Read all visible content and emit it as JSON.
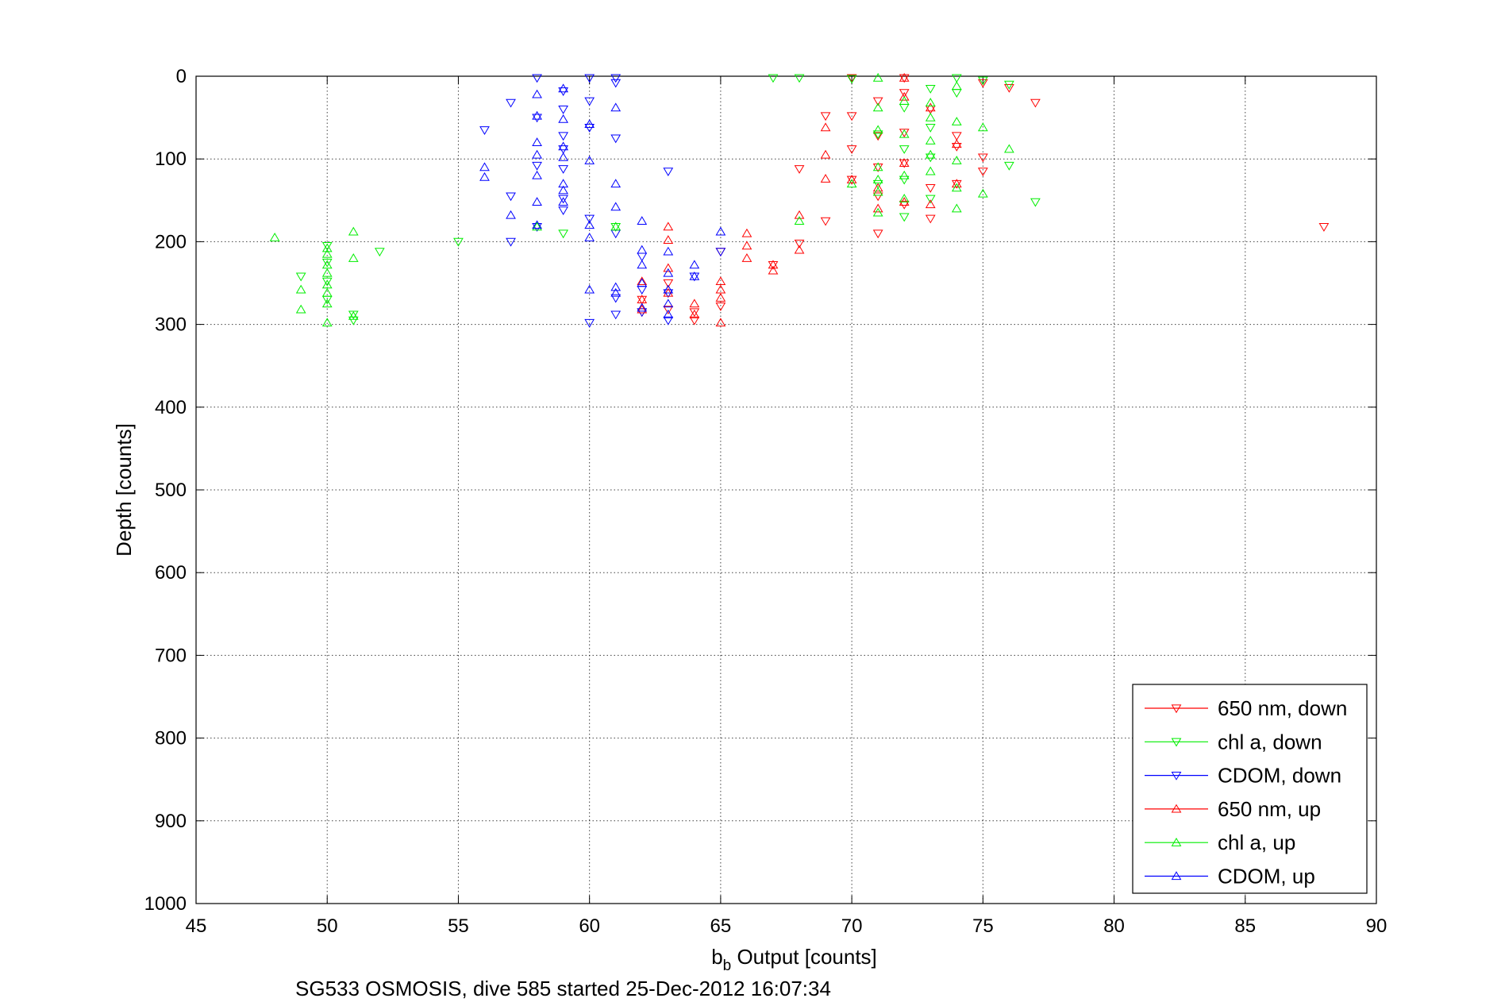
{
  "chart_data": {
    "type": "scatter",
    "title": "",
    "xlabel_main": "b",
    "xlabel_sub": "b",
    "xlabel_rest": " Output [counts]",
    "ylabel": "Depth [counts]",
    "caption": "SG533 OSMOSIS, dive 585 started 25-Dec-2012 16:07:34",
    "xlim": [
      45,
      90
    ],
    "ylim": [
      0,
      1000
    ],
    "y_reversed": true,
    "grid": true,
    "legend_position": "bottom-right",
    "x_ticks": [
      "45",
      "50",
      "55",
      "60",
      "65",
      "70",
      "75",
      "80",
      "85",
      "90"
    ],
    "y_ticks": [
      "0",
      "100",
      "200",
      "300",
      "400",
      "500",
      "600",
      "700",
      "800",
      "900",
      "1000"
    ],
    "series": [
      {
        "name": "650 nm, down",
        "color": "#ff0000",
        "marker": "triangle-down",
        "points": [
          [
            88,
            182
          ],
          [
            77,
            32
          ],
          [
            76,
            14
          ],
          [
            75,
            8
          ],
          [
            75,
            98
          ],
          [
            75,
            115
          ],
          [
            74,
            72
          ],
          [
            74,
            85
          ],
          [
            74,
            130
          ],
          [
            73,
            40
          ],
          [
            73,
            135
          ],
          [
            73,
            172
          ],
          [
            72,
            2
          ],
          [
            72,
            20
          ],
          [
            72,
            105
          ],
          [
            72,
            155
          ],
          [
            72,
            68
          ],
          [
            71,
            30
          ],
          [
            71,
            72
          ],
          [
            71,
            110
          ],
          [
            71,
            145
          ],
          [
            71,
            190
          ],
          [
            70,
            2
          ],
          [
            70,
            48
          ],
          [
            70,
            88
          ],
          [
            70,
            125
          ],
          [
            69,
            48
          ],
          [
            69,
            175
          ],
          [
            68,
            112
          ],
          [
            68,
            202
          ],
          [
            67,
            228
          ],
          [
            65,
            212
          ],
          [
            65,
            278
          ],
          [
            64,
            285
          ],
          [
            64,
            295
          ],
          [
            63,
            250
          ],
          [
            63,
            282
          ],
          [
            62,
            270
          ],
          [
            62,
            285
          ]
        ]
      },
      {
        "name": "chl a, down",
        "color": "#00ee00",
        "marker": "triangle-down",
        "points": [
          [
            77,
            152
          ],
          [
            76,
            108
          ],
          [
            76,
            10
          ],
          [
            75,
            5
          ],
          [
            74,
            2
          ],
          [
            74,
            20
          ],
          [
            73,
            15
          ],
          [
            73,
            62
          ],
          [
            73,
            98
          ],
          [
            73,
            148
          ],
          [
            72,
            38
          ],
          [
            72,
            88
          ],
          [
            72,
            125
          ],
          [
            72,
            170
          ],
          [
            71,
            70
          ],
          [
            71,
            130
          ],
          [
            70,
            3
          ],
          [
            68,
            2
          ],
          [
            67,
            2
          ],
          [
            61,
            182
          ],
          [
            59,
            190
          ],
          [
            55,
            200
          ],
          [
            52,
            212
          ],
          [
            51,
            295
          ],
          [
            51,
            288
          ],
          [
            50,
            205
          ],
          [
            50,
            225
          ],
          [
            50,
            248
          ],
          [
            50,
            270
          ],
          [
            49,
            242
          ]
        ]
      },
      {
        "name": "CDOM, down",
        "color": "#0000ff",
        "marker": "triangle-down",
        "points": [
          [
            65,
            212
          ],
          [
            64,
            242
          ],
          [
            63,
            115
          ],
          [
            63,
            262
          ],
          [
            63,
            295
          ],
          [
            62,
            218
          ],
          [
            62,
            258
          ],
          [
            62,
            285
          ],
          [
            61,
            2
          ],
          [
            61,
            8
          ],
          [
            61,
            75
          ],
          [
            61,
            190
          ],
          [
            61,
            268
          ],
          [
            61,
            288
          ],
          [
            60,
            2
          ],
          [
            60,
            30
          ],
          [
            60,
            62
          ],
          [
            60,
            172
          ],
          [
            60,
            298
          ],
          [
            59,
            18
          ],
          [
            59,
            40
          ],
          [
            59,
            72
          ],
          [
            59,
            88
          ],
          [
            59,
            112
          ],
          [
            59,
            148
          ],
          [
            59,
            162
          ],
          [
            58,
            2
          ],
          [
            58,
            50
          ],
          [
            58,
            108
          ],
          [
            58,
            182
          ],
          [
            57,
            32
          ],
          [
            57,
            145
          ],
          [
            57,
            200
          ],
          [
            56,
            65
          ]
        ]
      },
      {
        "name": "650 nm, up",
        "color": "#ff0000",
        "marker": "triangle-up",
        "points": [
          [
            74,
            82
          ],
          [
            74,
            130
          ],
          [
            73,
            38
          ],
          [
            73,
            155
          ],
          [
            72,
            2
          ],
          [
            72,
            25
          ],
          [
            72,
            105
          ],
          [
            72,
            152
          ],
          [
            71,
            135
          ],
          [
            71,
            160
          ],
          [
            70,
            125
          ],
          [
            69,
            62
          ],
          [
            69,
            95
          ],
          [
            69,
            124
          ],
          [
            68,
            168
          ],
          [
            68,
            210
          ],
          [
            67,
            228
          ],
          [
            67,
            235
          ],
          [
            66,
            190
          ],
          [
            66,
            205
          ],
          [
            66,
            220
          ],
          [
            65,
            248
          ],
          [
            65,
            258
          ],
          [
            65,
            268
          ],
          [
            65,
            298
          ],
          [
            64,
            275
          ],
          [
            64,
            288
          ],
          [
            63,
            182
          ],
          [
            63,
            198
          ],
          [
            63,
            232
          ],
          [
            63,
            262
          ],
          [
            62,
            248
          ],
          [
            62,
            270
          ],
          [
            62,
            282
          ]
        ]
      },
      {
        "name": "chl a, up",
        "color": "#00ee00",
        "marker": "triangle-up",
        "points": [
          [
            76,
            88
          ],
          [
            75,
            62
          ],
          [
            75,
            142
          ],
          [
            74,
            12
          ],
          [
            74,
            55
          ],
          [
            74,
            102
          ],
          [
            74,
            135
          ],
          [
            74,
            160
          ],
          [
            73,
            32
          ],
          [
            73,
            50
          ],
          [
            73,
            78
          ],
          [
            73,
            95
          ],
          [
            73,
            115
          ],
          [
            72,
            30
          ],
          [
            72,
            70
          ],
          [
            72,
            120
          ],
          [
            72,
            148
          ],
          [
            71,
            2
          ],
          [
            71,
            38
          ],
          [
            71,
            65
          ],
          [
            71,
            110
          ],
          [
            71,
            125
          ],
          [
            71,
            140
          ],
          [
            71,
            165
          ],
          [
            70,
            130
          ],
          [
            68,
            175
          ],
          [
            61,
            182
          ],
          [
            58,
            182
          ],
          [
            51,
            188
          ],
          [
            51,
            220
          ],
          [
            51,
            290
          ],
          [
            50,
            208
          ],
          [
            50,
            215
          ],
          [
            50,
            228
          ],
          [
            50,
            238
          ],
          [
            50,
            252
          ],
          [
            50,
            262
          ],
          [
            50,
            275
          ],
          [
            50,
            298
          ],
          [
            49,
            258
          ],
          [
            49,
            282
          ],
          [
            48,
            195
          ]
        ]
      },
      {
        "name": "CDOM, up",
        "color": "#0000ff",
        "marker": "triangle-up",
        "points": [
          [
            65,
            188
          ],
          [
            64,
            228
          ],
          [
            64,
            242
          ],
          [
            63,
            212
          ],
          [
            63,
            238
          ],
          [
            63,
            258
          ],
          [
            63,
            275
          ],
          [
            63,
            288
          ],
          [
            62,
            175
          ],
          [
            62,
            210
          ],
          [
            62,
            228
          ],
          [
            62,
            250
          ],
          [
            62,
            280
          ],
          [
            61,
            38
          ],
          [
            61,
            130
          ],
          [
            61,
            158
          ],
          [
            61,
            255
          ],
          [
            61,
            262
          ],
          [
            60,
            58
          ],
          [
            60,
            102
          ],
          [
            60,
            180
          ],
          [
            60,
            195
          ],
          [
            60,
            258
          ],
          [
            59,
            15
          ],
          [
            59,
            52
          ],
          [
            59,
            85
          ],
          [
            59,
            98
          ],
          [
            59,
            130
          ],
          [
            59,
            138
          ],
          [
            59,
            152
          ],
          [
            58,
            22
          ],
          [
            58,
            48
          ],
          [
            58,
            80
          ],
          [
            58,
            95
          ],
          [
            58,
            120
          ],
          [
            58,
            152
          ],
          [
            58,
            180
          ],
          [
            57,
            168
          ],
          [
            56,
            110
          ],
          [
            56,
            122
          ]
        ]
      }
    ]
  }
}
